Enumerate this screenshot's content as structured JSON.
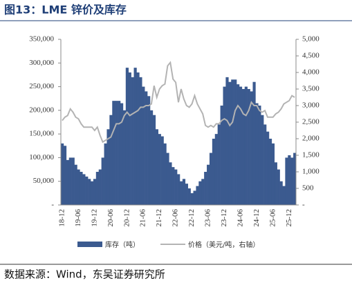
{
  "chart_data": {
    "type": "bar-line",
    "title": "图13：LME 锌价及库存",
    "source": "数据来源：Wind，东吴证券研究所",
    "categories": [
      "18-12",
      null,
      null,
      null,
      null,
      null,
      "19-06",
      null,
      null,
      null,
      null,
      null,
      "19-12",
      null,
      null,
      null,
      null,
      null,
      "20-06",
      null,
      null,
      null,
      null,
      null,
      "20-12",
      null,
      null,
      null,
      null,
      null,
      "21-06",
      null,
      null,
      null,
      null,
      null,
      "21-12",
      null,
      null,
      null,
      null,
      null,
      "22-06",
      null,
      null,
      null,
      null,
      null,
      "22-12",
      null,
      null,
      null,
      null,
      null,
      "23-06",
      null,
      null,
      null,
      null,
      null,
      "23-12",
      null,
      null,
      null,
      null,
      null,
      "24-06",
      null,
      null,
      null,
      null,
      null,
      "24-12",
      null,
      null,
      null,
      null,
      null,
      "25-06",
      null,
      null,
      null,
      null,
      null,
      "25-12",
      null,
      null
    ],
    "series": [
      {
        "name": "库存（吨）",
        "color": "#3b5a8f",
        "kind": "bar",
        "values": [
          130000,
          125000,
          95000,
          100000,
          100000,
          85000,
          75000,
          70000,
          65000,
          60000,
          55000,
          50000,
          55000,
          70000,
          75000,
          100000,
          130000,
          160000,
          190000,
          220000,
          220000,
          220000,
          215000,
          200000,
          290000,
          280000,
          270000,
          290000,
          280000,
          270000,
          250000,
          240000,
          230000,
          200000,
          190000,
          160000,
          150000,
          145000,
          130000,
          110000,
          90000,
          80000,
          75000,
          65000,
          50000,
          55000,
          45000,
          35000,
          25000,
          30000,
          40000,
          50000,
          55000,
          70000,
          85000,
          110000,
          140000,
          150000,
          170000,
          210000,
          250000,
          270000,
          260000,
          265000,
          265000,
          255000,
          250000,
          245000,
          250000,
          245000,
          240000,
          260000,
          215000,
          210000,
          190000,
          170000,
          155000,
          140000,
          130000,
          90000,
          75000,
          50000,
          40000,
          100000,
          105000,
          100000,
          110000
        ]
      },
      {
        "name": "价格（美元/吨，右轴）",
        "color": "#b3b3b3",
        "kind": "line",
        "axis": "y2",
        "values": [
          2550,
          2650,
          2700,
          2900,
          2800,
          2650,
          2600,
          2450,
          2350,
          2350,
          2350,
          2350,
          2250,
          2350,
          2100,
          1900,
          1950,
          2000,
          2050,
          2250,
          2450,
          2450,
          2500,
          2700,
          2800,
          2700,
          2750,
          2800,
          2850,
          2950,
          2950,
          3000,
          3000,
          3050,
          3600,
          3250,
          3500,
          3600,
          3650,
          4200,
          4300,
          3800,
          3700,
          3100,
          3500,
          3200,
          3000,
          2950,
          3050,
          3300,
          3050,
          2900,
          2750,
          2400,
          2350,
          2400,
          2350,
          2450,
          2450,
          2550,
          2600,
          2550,
          2400,
          2500,
          2850,
          3000,
          2900,
          2750,
          2700,
          2850,
          3100,
          3000,
          3000,
          2850,
          2800,
          2850,
          2650,
          2650,
          2650,
          2750,
          2800,
          2900,
          3050,
          3100,
          3150,
          3300,
          3250
        ]
      }
    ],
    "ylim": [
      0,
      350000
    ],
    "yticks": [
      {
        "value": 0,
        "label": "-"
      },
      {
        "value": 50000,
        "label": "50,000"
      },
      {
        "value": 100000,
        "label": "100,000"
      },
      {
        "value": 150000,
        "label": "150,000"
      },
      {
        "value": 200000,
        "label": "200,000"
      },
      {
        "value": 250000,
        "label": "250,000"
      },
      {
        "value": 300000,
        "label": "300,000"
      },
      {
        "value": 350000,
        "label": "350,000"
      }
    ],
    "y2lim": [
      0,
      5000
    ],
    "y2ticks": [
      {
        "value": 0,
        "label": "-"
      },
      500,
      {
        "value": 1000,
        "label": "1,000"
      },
      {
        "value": 1500,
        "label": "1,500"
      },
      {
        "value": 2000,
        "label": "2,000"
      },
      {
        "value": 2500,
        "label": "2,500"
      },
      {
        "value": 3000,
        "label": "3,000"
      },
      {
        "value": 3500,
        "label": "3,500"
      },
      {
        "value": 4000,
        "label": "4,000"
      },
      {
        "value": 4500,
        "label": "4,500"
      },
      {
        "value": 5000,
        "label": "5,000"
      }
    ]
  }
}
